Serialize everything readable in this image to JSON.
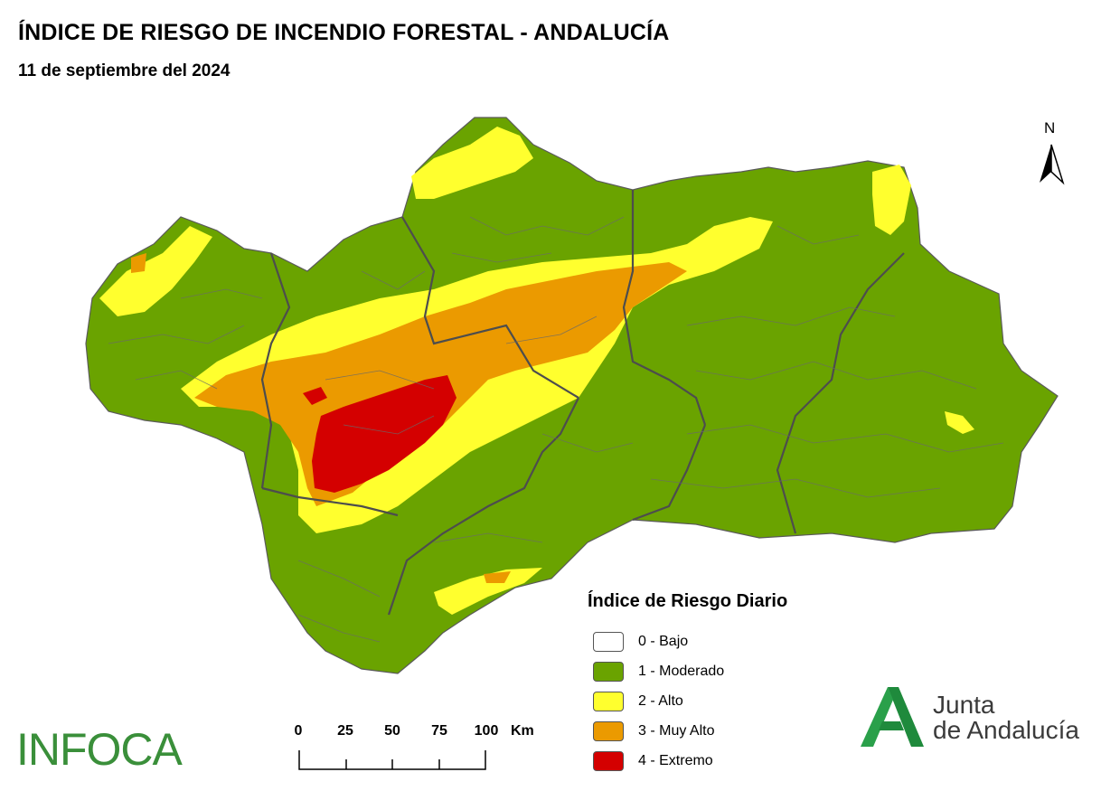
{
  "title": "ÍNDICE DE RIESGO DE INCENDIO FORESTAL - ANDALUCÍA",
  "subtitle": "11 de septiembre del 2024",
  "north_label": "N",
  "legend": {
    "title": "Índice de Riesgo Diario",
    "items": [
      {
        "label": "0 - Bajo",
        "color": "#ffffff"
      },
      {
        "label": "1 - Moderado",
        "color": "#6aa300"
      },
      {
        "label": "2 - Alto",
        "color": "#ffff2e"
      },
      {
        "label": "3 - Muy Alto",
        "color": "#eb9a00"
      },
      {
        "label": "4 - Extremo",
        "color": "#d40000"
      }
    ]
  },
  "scale": {
    "ticks": [
      "0",
      "25",
      "50",
      "75",
      "100"
    ],
    "unit": "Km"
  },
  "logos": {
    "infoca": "INFOCA",
    "junta_line1": "Junta",
    "junta_line2": "de Andalucía"
  },
  "colors": {
    "moderado": "#6aa300",
    "alto": "#ffff2e",
    "muy_alto": "#eb9a00",
    "extremo": "#d40000",
    "border": "#5a5a5a"
  }
}
